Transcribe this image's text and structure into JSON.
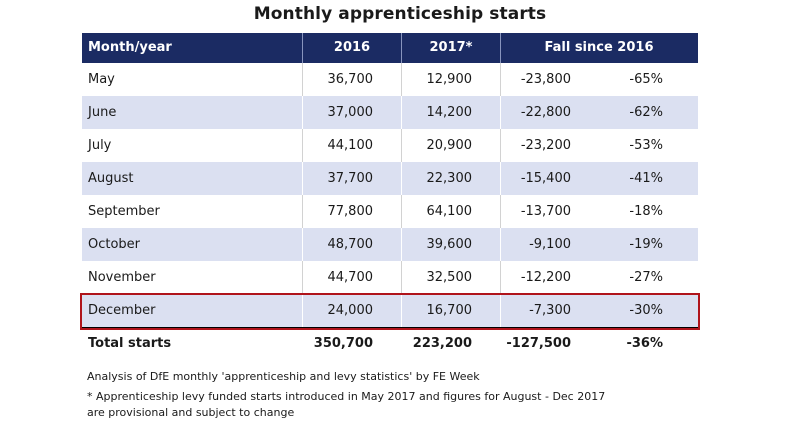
{
  "title": "Monthly apprenticeship starts",
  "chart_data": {
    "type": "table",
    "title": "Monthly apprenticeship starts",
    "columns": [
      "Month/year",
      "2016",
      "2017*",
      "Fall since 2016"
    ],
    "rows": [
      {
        "month": "May",
        "v2016": "36,700",
        "v2017": "12,900",
        "fall": "-23,800",
        "pct": "-65%"
      },
      {
        "month": "June",
        "v2016": "37,000",
        "v2017": "14,200",
        "fall": "-22,800",
        "pct": "-62%"
      },
      {
        "month": "July",
        "v2016": "44,100",
        "v2017": "20,900",
        "fall": "-23,200",
        "pct": "-53%"
      },
      {
        "month": "August",
        "v2016": "37,700",
        "v2017": "22,300",
        "fall": "-15,400",
        "pct": "-41%"
      },
      {
        "month": "September",
        "v2016": "77,800",
        "v2017": "64,100",
        "fall": "-13,700",
        "pct": "-18%"
      },
      {
        "month": "October",
        "v2016": "48,700",
        "v2017": "39,600",
        "fall": "-9,100",
        "pct": "-19%"
      },
      {
        "month": "November",
        "v2016": "44,700",
        "v2017": "32,500",
        "fall": "-12,200",
        "pct": "-27%"
      },
      {
        "month": "December",
        "v2016": "24,000",
        "v2017": "16,700",
        "fall": "-7,300",
        "pct": "-30%"
      }
    ],
    "total": {
      "month": "Total starts",
      "v2016": "350,700",
      "v2017": "223,200",
      "fall": "-127,500",
      "pct": "-36%"
    },
    "highlighted_row": "December"
  },
  "notes": [
    "Analysis of DfE monthly 'apprenticeship and levy statistics' by FE Week",
    "* Apprenticeship levy funded starts introduced in May 2017 and figures for August - Dec 2017",
    "are provisional and subject to change"
  ],
  "colors": {
    "header": "#1b2b63",
    "shade": "#dbe0f1",
    "highlight": "#b0141b"
  }
}
